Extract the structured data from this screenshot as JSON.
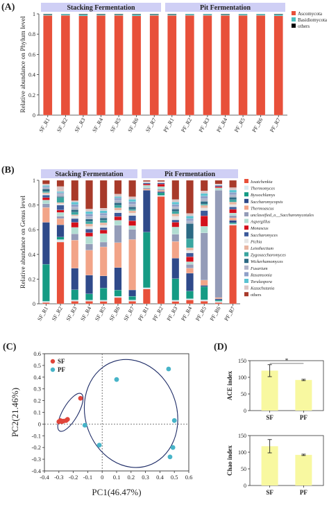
{
  "panels": {
    "A": {
      "label": "(A)"
    },
    "B": {
      "label": "(B)"
    },
    "C": {
      "label": "(C)"
    },
    "D": {
      "label": "(D)"
    }
  },
  "colors": {
    "Ascomycota": "#e8503a",
    "Basidiomycota": "#4bbfbf",
    "phylum_others": "#2e6f8e",
    "Issatchenkia": "#e8503a",
    "Thermomyces": "#d9e9f0",
    "Byssochlamys": "#159b84",
    "Saccharomycopsis": "#2f4a8a",
    "Thermoascus": "#f2a488",
    "unclassified_Saccharomycetales": "#949cb8",
    "Aspergillus": "#b2ddd2",
    "Monascus": "#d4101b",
    "Saccharomyces": "#3c5a9a",
    "Pichia": "#e5e5e5",
    "Leiotheciium": "#e8b4a0",
    "Zygosaccharomyces": "#3aa6a0",
    "Wickerhamomyces": "#2d6a84",
    "Fusarium": "#b0b4c8",
    "Rasamsonia": "#8fa0c8",
    "Torulaspora": "#5bc3d2",
    "Kazachstania": "#d9c5c5",
    "genus_others": "#a83a2a",
    "group_band": "#cfcff5",
    "SF": "#e0453a",
    "PF": "#47b4c8",
    "bar_D": "#f8f8a0"
  },
  "chart_data": [
    {
      "type": "bar",
      "stacked": true,
      "panel": "A",
      "groups": [
        "Stacking Fermentation",
        "Pit Fermentation"
      ],
      "categories": [
        "SF_R1",
        "SF_R2",
        "SF_R3",
        "SF_R4",
        "SF_R5",
        "SF_R6",
        "SF_R7",
        "PF_R1",
        "PF_R2",
        "PF_R3",
        "PF_R4",
        "PF_R5",
        "PF_R6",
        "PF_R7"
      ],
      "ylabel": "Relative abundance on Phylum level",
      "ylim": [
        0,
        1
      ],
      "yticks": [
        "0",
        "0.2",
        "0.4",
        "0.6",
        "0.8",
        "1"
      ],
      "legend": [
        "Ascomycota",
        "Basidiomycota",
        "others"
      ],
      "legend_position": "right",
      "series": [
        {
          "name": "Ascomycota",
          "values": [
            0.985,
            0.985,
            0.98,
            0.985,
            0.985,
            0.98,
            0.985,
            0.985,
            0.985,
            0.985,
            0.985,
            0.985,
            0.985,
            0.98
          ]
        },
        {
          "name": "Basidiomycota",
          "values": [
            0.01,
            0.012,
            0.015,
            0.01,
            0.01,
            0.015,
            0.01,
            0.01,
            0.012,
            0.012,
            0.01,
            0.012,
            0.012,
            0.015
          ]
        },
        {
          "name": "others",
          "values": [
            0.005,
            0.003,
            0.005,
            0.005,
            0.005,
            0.005,
            0.005,
            0.005,
            0.003,
            0.003,
            0.005,
            0.003,
            0.003,
            0.005
          ]
        }
      ]
    },
    {
      "type": "bar",
      "stacked": true,
      "panel": "B",
      "groups": [
        "Stacking Fermentation",
        "Pit Fermentation"
      ],
      "categories": [
        "SF_R1",
        "SF_R2",
        "SF_R3",
        "SF_R4",
        "SF_R5",
        "SF_R6",
        "SF_R7",
        "PF_R1",
        "PF_R2",
        "PF_R3",
        "PF_R4",
        "PF_R5",
        "PF_R6",
        "PF_R7"
      ],
      "ylabel": "Relative abundance on Genus level",
      "ylim": [
        0,
        1
      ],
      "yticks": [
        "0",
        "0.2",
        "0.4",
        "0.6",
        "0.8",
        "1"
      ],
      "legend_position": "right",
      "legend": [
        "Issatchenkia",
        "Thermomyces",
        "Byssochlamys",
        "Saccharomycopsis",
        "Thermoascus",
        "unclassified_o__Saccharomycetales",
        "Aspergillus",
        "Monascus",
        "Saccharomyces",
        "Pichia",
        "Leiotheciium",
        "Zygosaccharomyces",
        "Wickerhamomyces",
        "Fusarium",
        "Rasamsonia",
        "Torulaspora",
        "Kazachstania",
        "others"
      ],
      "series": [
        {
          "name": "Issatchenkia",
          "key": "Issatchenkia",
          "values": [
            0.01,
            0.5,
            0.02,
            0.02,
            0.02,
            0.05,
            0.02,
            0.12,
            0.86,
            0.02,
            0.03,
            0.02,
            0.01,
            0.65
          ]
        },
        {
          "name": "Thermomyces",
          "key": "Thermomyces",
          "values": [
            0.01,
            0.02,
            0.01,
            0.01,
            0.01,
            0.01,
            0.01,
            0.01,
            0.01,
            0.01,
            0.01,
            0.01,
            0.01,
            0.01
          ]
        },
        {
          "name": "Byssochlamys",
          "key": "Byssochlamys",
          "values": [
            0.3,
            0.02,
            0.08,
            0.05,
            0.1,
            0.05,
            0.03,
            0.45,
            0.02,
            0.18,
            0.06,
            0.1,
            0.01,
            0.01
          ]
        },
        {
          "name": "Saccharomycopsis",
          "key": "Saccharomycopsis",
          "values": [
            0.34,
            0.1,
            0.17,
            0.15,
            0.1,
            0.18,
            0.05,
            0.34,
            0.01,
            0.17,
            0.14,
            0.01,
            0.01,
            0.02
          ]
        },
        {
          "name": "Thermoascus",
          "key": "Thermoascus",
          "values": [
            0.12,
            0.05,
            0.22,
            0.2,
            0.24,
            0.2,
            0.4,
            0.01,
            0.01,
            0.14,
            0.04,
            0.04,
            0.01,
            0.02
          ]
        },
        {
          "name": "unclassified_o__Saccharomycetales",
          "key": "unclassified_Saccharomycetales",
          "values": [
            0.03,
            0.02,
            0.05,
            0.05,
            0.04,
            0.14,
            0.08,
            0.01,
            0.01,
            0.06,
            0.03,
            0.36,
            0.86,
            0.02
          ]
        },
        {
          "name": "Aspergillus",
          "key": "Aspergillus",
          "values": [
            0.03,
            0.03,
            0.05,
            0.06,
            0.07,
            0.04,
            0.03,
            0.02,
            0.02,
            0.06,
            0.02,
            0.05,
            0.02,
            0.02
          ]
        },
        {
          "name": "Monascus",
          "key": "Monascus",
          "values": [
            0.02,
            0.02,
            0.04,
            0.03,
            0.03,
            0.03,
            0.04,
            0.01,
            0.02,
            0.04,
            0.04,
            0.08,
            0.01,
            0.03
          ]
        },
        {
          "name": "Saccharomyces",
          "key": "Saccharomyces",
          "values": [
            0.02,
            0.04,
            0.03,
            0.03,
            0.02,
            0.03,
            0.04,
            0.01,
            0.01,
            0.02,
            0.03,
            0.04,
            0.01,
            0.02
          ]
        },
        {
          "name": "Pichia",
          "key": "Pichia",
          "values": [
            0.01,
            0.01,
            0.02,
            0.02,
            0.02,
            0.02,
            0.02,
            0.01,
            0.01,
            0.03,
            0.02,
            0.02,
            0.01,
            0.02
          ]
        },
        {
          "name": "Leiotheciium",
          "key": "Leiotheciium",
          "values": [
            0.01,
            0.01,
            0.01,
            0.02,
            0.02,
            0.02,
            0.02,
            0.0,
            0.0,
            0.02,
            0.02,
            0.02,
            0.0,
            0.02
          ]
        },
        {
          "name": "Zygosaccharomyces",
          "key": "Zygosaccharomyces",
          "values": [
            0.01,
            0.04,
            0.02,
            0.02,
            0.02,
            0.02,
            0.01,
            0.0,
            0.0,
            0.02,
            0.07,
            0.01,
            0.0,
            0.02
          ]
        },
        {
          "name": "Wickerhamomyces",
          "key": "Wickerhamomyces",
          "values": [
            0.02,
            0.01,
            0.02,
            0.02,
            0.02,
            0.02,
            0.02,
            0.0,
            0.0,
            0.02,
            0.12,
            0.02,
            0.0,
            0.02
          ]
        },
        {
          "name": "Fusarium",
          "key": "Fusarium",
          "values": [
            0.01,
            0.02,
            0.02,
            0.02,
            0.02,
            0.02,
            0.02,
            0.0,
            0.0,
            0.02,
            0.02,
            0.02,
            0.0,
            0.02
          ]
        },
        {
          "name": "Rasamsonia",
          "key": "Rasamsonia",
          "values": [
            0.01,
            0.01,
            0.02,
            0.02,
            0.02,
            0.02,
            0.02,
            0.0,
            0.0,
            0.02,
            0.02,
            0.02,
            0.0,
            0.02
          ]
        },
        {
          "name": "Torulaspora",
          "key": "Torulaspora",
          "values": [
            0.01,
            0.01,
            0.02,
            0.02,
            0.02,
            0.01,
            0.02,
            0.0,
            0.0,
            0.02,
            0.02,
            0.02,
            0.0,
            0.02
          ]
        },
        {
          "name": "Kazachstania",
          "key": "Kazachstania",
          "values": [
            0.01,
            0.04,
            0.01,
            0.02,
            0.02,
            0.02,
            0.02,
            0.0,
            0.0,
            0.02,
            0.02,
            0.02,
            0.0,
            0.02
          ]
        },
        {
          "name": "others",
          "key": "genus_others",
          "values": [
            0.03,
            0.05,
            0.16,
            0.23,
            0.23,
            0.11,
            0.13,
            0.01,
            0.01,
            0.16,
            0.26,
            0.08,
            0.03,
            0.06
          ]
        }
      ]
    },
    {
      "type": "scatter",
      "panel": "C",
      "xlabel": "PC1(46.47%)",
      "ylabel": "PC2(21.46%)",
      "xlim": [
        -0.4,
        0.6
      ],
      "ylim": [
        -0.4,
        0.6
      ],
      "xticks": [
        "-0.4",
        "-0.3",
        "-0.2",
        "-0.1",
        "0",
        "0.1",
        "0.2",
        "0.3",
        "0.4",
        "0.5",
        "0.6"
      ],
      "yticks": [
        "-0.4",
        "-0.3",
        "-0.2",
        "-0.1",
        "0",
        "0.1",
        "0.2",
        "0.3",
        "0.4",
        "0.5",
        "0.6"
      ],
      "legend_position": "top-left",
      "series": [
        {
          "name": "SF",
          "points": [
            [
              -0.3,
              0.02
            ],
            [
              -0.29,
              0.03
            ],
            [
              -0.28,
              0.02
            ],
            [
              -0.27,
              0.025
            ],
            [
              -0.25,
              0.03
            ],
            [
              -0.24,
              0.04
            ],
            [
              -0.15,
              0.22
            ]
          ]
        },
        {
          "name": "PF",
          "points": [
            [
              0.1,
              0.38
            ],
            [
              0.46,
              0.47
            ],
            [
              0.5,
              0.03
            ],
            [
              0.49,
              -0.2
            ],
            [
              0.47,
              -0.28
            ],
            [
              -0.12,
              -0.01
            ],
            [
              -0.02,
              -0.18
            ]
          ]
        }
      ]
    },
    {
      "type": "bar",
      "panel": "D",
      "categories": [
        "SF",
        "PF"
      ],
      "subplots": [
        {
          "ylabel": "ACE index",
          "ylim": [
            0,
            150
          ],
          "yticks": [
            "0",
            "50",
            "100",
            "150"
          ],
          "values": [
            120,
            92
          ],
          "errors": [
            18,
            2
          ],
          "significance": "*"
        },
        {
          "ylabel": "Chao index",
          "ylim": [
            0,
            150
          ],
          "yticks": [
            "0",
            "50",
            "100",
            "150"
          ],
          "values": [
            118,
            92
          ],
          "errors": [
            20,
            2
          ]
        }
      ]
    }
  ]
}
